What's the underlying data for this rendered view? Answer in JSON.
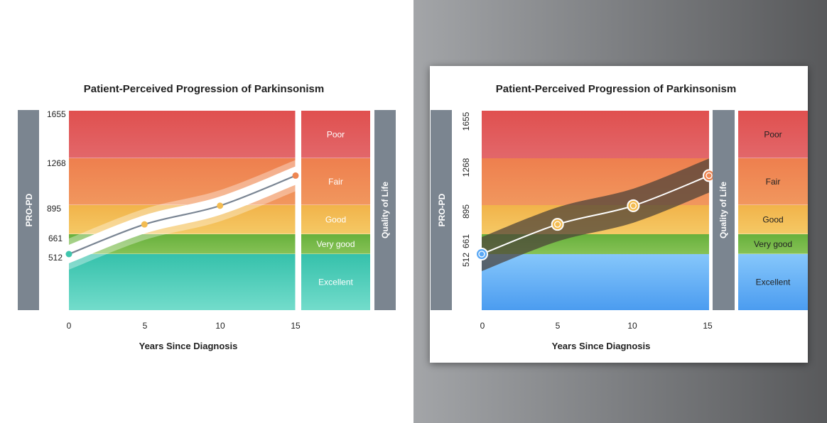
{
  "chart_data": [
    {
      "type": "line",
      "title": "Patient-Perceived Progression of Parkinsonism",
      "xlabel": "Years Since Diagnosis",
      "ylabel": "PRO-PD",
      "right_label": "Quality of Life",
      "x": [
        0,
        5,
        10,
        15
      ],
      "x_ticks": [
        "0",
        "5",
        "10",
        "15"
      ],
      "y_ticks": [
        "1655",
        "1268",
        "895",
        "661",
        "512"
      ],
      "series": [
        {
          "x": [
            0,
            5,
            10,
            15
          ],
          "values": [
            512,
            740,
            890,
            1130
          ]
        }
      ],
      "bands": [
        {
          "label": "Poor",
          "from": 1268,
          "to": 1655,
          "color": "#e0504f"
        },
        {
          "label": "Fair",
          "from": 895,
          "to": 1268,
          "color": "#ee8652"
        },
        {
          "label": "Good",
          "from": 661,
          "to": 895,
          "color": "#f3bc52"
        },
        {
          "label": "Very good",
          "from": 512,
          "to": 661,
          "color": "#70b644"
        },
        {
          "label": "Excellent",
          "from": 0,
          "to": 512,
          "color": "#3ec5ad"
        }
      ],
      "band_style": "teal"
    },
    {
      "type": "line",
      "title": "Patient-Perceived Progression of Parkinsonism",
      "xlabel": "Years Since Diagnosis",
      "ylabel": "PRO-PD",
      "right_label": "Quality of Life",
      "x": [
        0,
        5,
        10,
        15
      ],
      "x_ticks": [
        "0",
        "5",
        "10",
        "15"
      ],
      "y_ticks": [
        "1655",
        "1268",
        "895",
        "661",
        "512"
      ],
      "series": [
        {
          "x": [
            0,
            5,
            10,
            15
          ],
          "values": [
            512,
            740,
            890,
            1130
          ]
        }
      ],
      "bands": [
        {
          "label": "Poor",
          "from": 1268,
          "to": 1655,
          "color": "#e0504f"
        },
        {
          "label": "Fair",
          "from": 895,
          "to": 1268,
          "color": "#ee8652"
        },
        {
          "label": "Good",
          "from": 661,
          "to": 895,
          "color": "#f3bc52"
        },
        {
          "label": "Very good",
          "from": 512,
          "to": 661,
          "color": "#70b644"
        },
        {
          "label": "Excellent",
          "from": 0,
          "to": 512,
          "color": "#5aa8f5"
        }
      ],
      "band_style": "blue"
    }
  ]
}
